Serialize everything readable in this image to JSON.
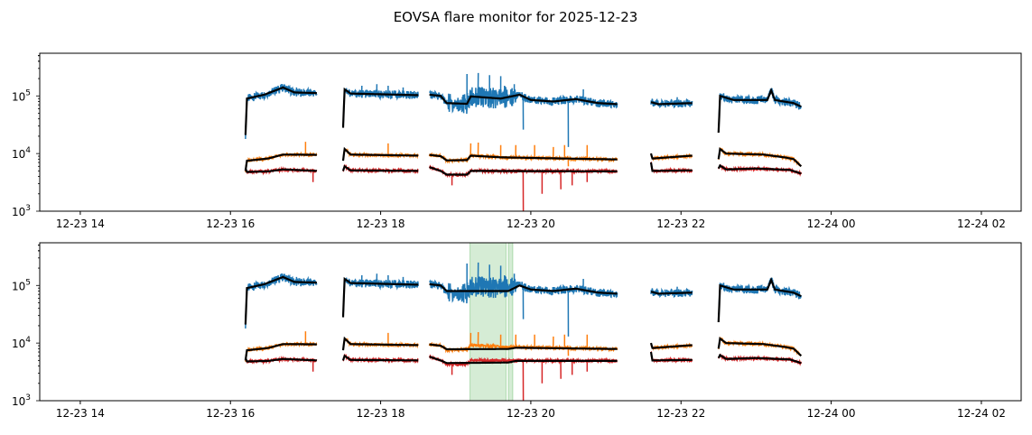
{
  "chart_data": {
    "type": "line",
    "title": "EOVSA flare monitor for 2025-12-23",
    "xlabel": "",
    "ylabel": "",
    "yscale": "log",
    "xlim_hours": [
      13.46,
      26.53
    ],
    "ylim": [
      1000,
      550000
    ],
    "xtick_hours": [
      14,
      16,
      18,
      20,
      22,
      24,
      26
    ],
    "xtick_labels": [
      "12-23 14",
      "12-23 16",
      "12-23 18",
      "12-23 20",
      "12-23 22",
      "12-24 00",
      "12-24 02"
    ],
    "ytick_values": [
      1000,
      10000,
      100000
    ],
    "ytick_labels": [
      [
        "10",
        "3"
      ],
      [
        "10",
        "4"
      ],
      [
        "10",
        "5"
      ]
    ],
    "colors": {
      "blue": "#1f77b4",
      "orange": "#ff7f0e",
      "red": "#d62728",
      "smooth": "#000000",
      "flare_span": "#2ca02c"
    },
    "segments": [
      {
        "t": [
          16.2,
          17.15
        ],
        "blue": [
          [
            16.2,
            21000
          ],
          [
            16.22,
            90000
          ],
          [
            16.45,
            105000
          ],
          [
            16.7,
            140000
          ],
          [
            16.85,
            115000
          ],
          [
            17.15,
            112000
          ]
        ],
        "orange": [
          [
            16.2,
            5000
          ],
          [
            16.22,
            7500
          ],
          [
            16.5,
            8200
          ],
          [
            16.7,
            9600
          ],
          [
            17.15,
            9500
          ]
        ],
        "red": [
          [
            16.2,
            5500
          ],
          [
            16.22,
            4800
          ],
          [
            16.5,
            4900
          ],
          [
            16.7,
            5300
          ],
          [
            17.15,
            5000
          ]
        ],
        "spikes": {
          "blue": [
            [
              16.88,
              140000
            ]
          ],
          "orange": [
            [
              17.0,
              16000
            ]
          ],
          "red": [
            [
              17.1,
              3200
            ]
          ]
        }
      },
      {
        "t": [
          17.5,
          18.5
        ],
        "blue": [
          [
            17.5,
            28000
          ],
          [
            17.52,
            130000
          ],
          [
            17.6,
            110000
          ],
          [
            18.5,
            103000
          ]
        ],
        "orange": [
          [
            17.5,
            7500
          ],
          [
            17.52,
            12000
          ],
          [
            17.6,
            9600
          ],
          [
            18.5,
            9200
          ]
        ],
        "red": [
          [
            17.5,
            5000
          ],
          [
            17.52,
            6000
          ],
          [
            17.6,
            5100
          ],
          [
            18.5,
            5000
          ]
        ],
        "spikes": {
          "blue": [
            [
              17.75,
              150000
            ],
            [
              17.95,
              160000
            ],
            [
              18.1,
              150000
            ],
            [
              18.3,
              140000
            ]
          ],
          "orange": [
            [
              18.1,
              15000
            ]
          ],
          "red": []
        }
      },
      {
        "t": [
          18.65,
          21.15
        ],
        "blue": [
          [
            18.65,
            105000
          ],
          [
            18.8,
            100000
          ],
          [
            18.88,
            75000
          ],
          [
            19.15,
            73000
          ],
          [
            19.2,
            98000
          ],
          [
            19.6,
            90000
          ],
          [
            19.85,
            105000
          ],
          [
            20.0,
            85000
          ],
          [
            20.3,
            80000
          ],
          [
            20.6,
            88000
          ],
          [
            20.9,
            75000
          ],
          [
            21.15,
            72000
          ]
        ],
        "orange": [
          [
            18.65,
            9500
          ],
          [
            18.8,
            9000
          ],
          [
            18.88,
            7600
          ],
          [
            19.15,
            7700
          ],
          [
            19.2,
            9200
          ],
          [
            19.6,
            8600
          ],
          [
            20.0,
            8400
          ],
          [
            21.15,
            7900
          ]
        ],
        "red": [
          [
            18.65,
            5800
          ],
          [
            18.8,
            5000
          ],
          [
            18.88,
            4300
          ],
          [
            19.15,
            4300
          ],
          [
            19.2,
            5000
          ],
          [
            21.15,
            4900
          ]
        ],
        "smooth2": {
          "blue": [
            [
              18.65,
              105000
            ],
            [
              18.8,
              100000
            ],
            [
              18.88,
              80000
            ],
            [
              19.7,
              80000
            ],
            [
              19.85,
              100000
            ],
            [
              20.0,
              85000
            ],
            [
              20.3,
              80000
            ],
            [
              20.6,
              88000
            ],
            [
              20.9,
              75000
            ],
            [
              21.15,
              72000
            ]
          ],
          "orange": [
            [
              18.65,
              9500
            ],
            [
              18.8,
              9000
            ],
            [
              18.88,
              7800
            ],
            [
              19.7,
              7900
            ],
            [
              19.8,
              8300
            ],
            [
              21.15,
              7900
            ]
          ],
          "red": [
            [
              18.65,
              5800
            ],
            [
              18.8,
              5000
            ],
            [
              18.88,
              4500
            ],
            [
              19.7,
              4600
            ],
            [
              19.8,
              4900
            ],
            [
              21.15,
              4900
            ]
          ]
        },
        "spikes": {
          "blue": [
            [
              19.15,
              240000
            ],
            [
              19.3,
              250000
            ],
            [
              19.45,
              230000
            ],
            [
              19.6,
              220000
            ],
            [
              19.65,
              150000
            ],
            [
              19.78,
              160000
            ],
            [
              19.9,
              26000
            ],
            [
              20.5,
              13000
            ],
            [
              20.7,
              130000
            ]
          ],
          "orange": [
            [
              19.2,
              15000
            ],
            [
              19.3,
              15500
            ],
            [
              19.6,
              14000
            ],
            [
              19.8,
              14000
            ],
            [
              20.05,
              14000
            ],
            [
              20.3,
              13000
            ],
            [
              20.45,
              14000
            ],
            [
              20.5,
              6000
            ],
            [
              20.75,
              14000
            ]
          ],
          "red": [
            [
              18.95,
              2800
            ],
            [
              19.9,
              1000
            ],
            [
              20.15,
              2000
            ],
            [
              20.4,
              2400
            ],
            [
              20.55,
              2800
            ],
            [
              20.75,
              3200
            ]
          ]
        }
      },
      {
        "t": [
          21.6,
          22.15
        ],
        "blue": [
          [
            21.6,
            78000
          ],
          [
            21.7,
            72000
          ],
          [
            22.15,
            75000
          ]
        ],
        "orange": [
          [
            21.6,
            10000
          ],
          [
            21.62,
            8200
          ],
          [
            22.15,
            9200
          ]
        ],
        "red": [
          [
            21.6,
            7000
          ],
          [
            21.62,
            5000
          ],
          [
            22.15,
            5100
          ]
        ],
        "spikes": {
          "blue": [
            [
              21.95,
              95000
            ]
          ],
          "orange": [],
          "red": []
        }
      },
      {
        "t": [
          22.5,
          23.6
        ],
        "blue": [
          [
            22.5,
            23000
          ],
          [
            22.52,
            100000
          ],
          [
            22.7,
            85000
          ],
          [
            23.15,
            85000
          ],
          [
            23.2,
            125000
          ],
          [
            23.25,
            85000
          ],
          [
            23.5,
            75000
          ],
          [
            23.6,
            65000
          ]
        ],
        "orange": [
          [
            22.5,
            8000
          ],
          [
            22.52,
            12000
          ],
          [
            22.6,
            10000
          ],
          [
            23.1,
            9600
          ],
          [
            23.4,
            8500
          ],
          [
            23.5,
            8000
          ],
          [
            23.6,
            6000
          ]
        ],
        "red": [
          [
            22.5,
            5500
          ],
          [
            22.52,
            6200
          ],
          [
            22.6,
            5300
          ],
          [
            23.0,
            5500
          ],
          [
            23.45,
            5200
          ],
          [
            23.6,
            4500
          ]
        ],
        "spikes": {
          "blue": [],
          "orange": [],
          "red": []
        }
      }
    ],
    "flare_spans_hours": [
      [
        19.19,
        19.67
      ],
      [
        19.7,
        19.76
      ]
    ],
    "panels": [
      "raw with trend",
      "raw with flare-excluded trend and flare intervals"
    ]
  }
}
